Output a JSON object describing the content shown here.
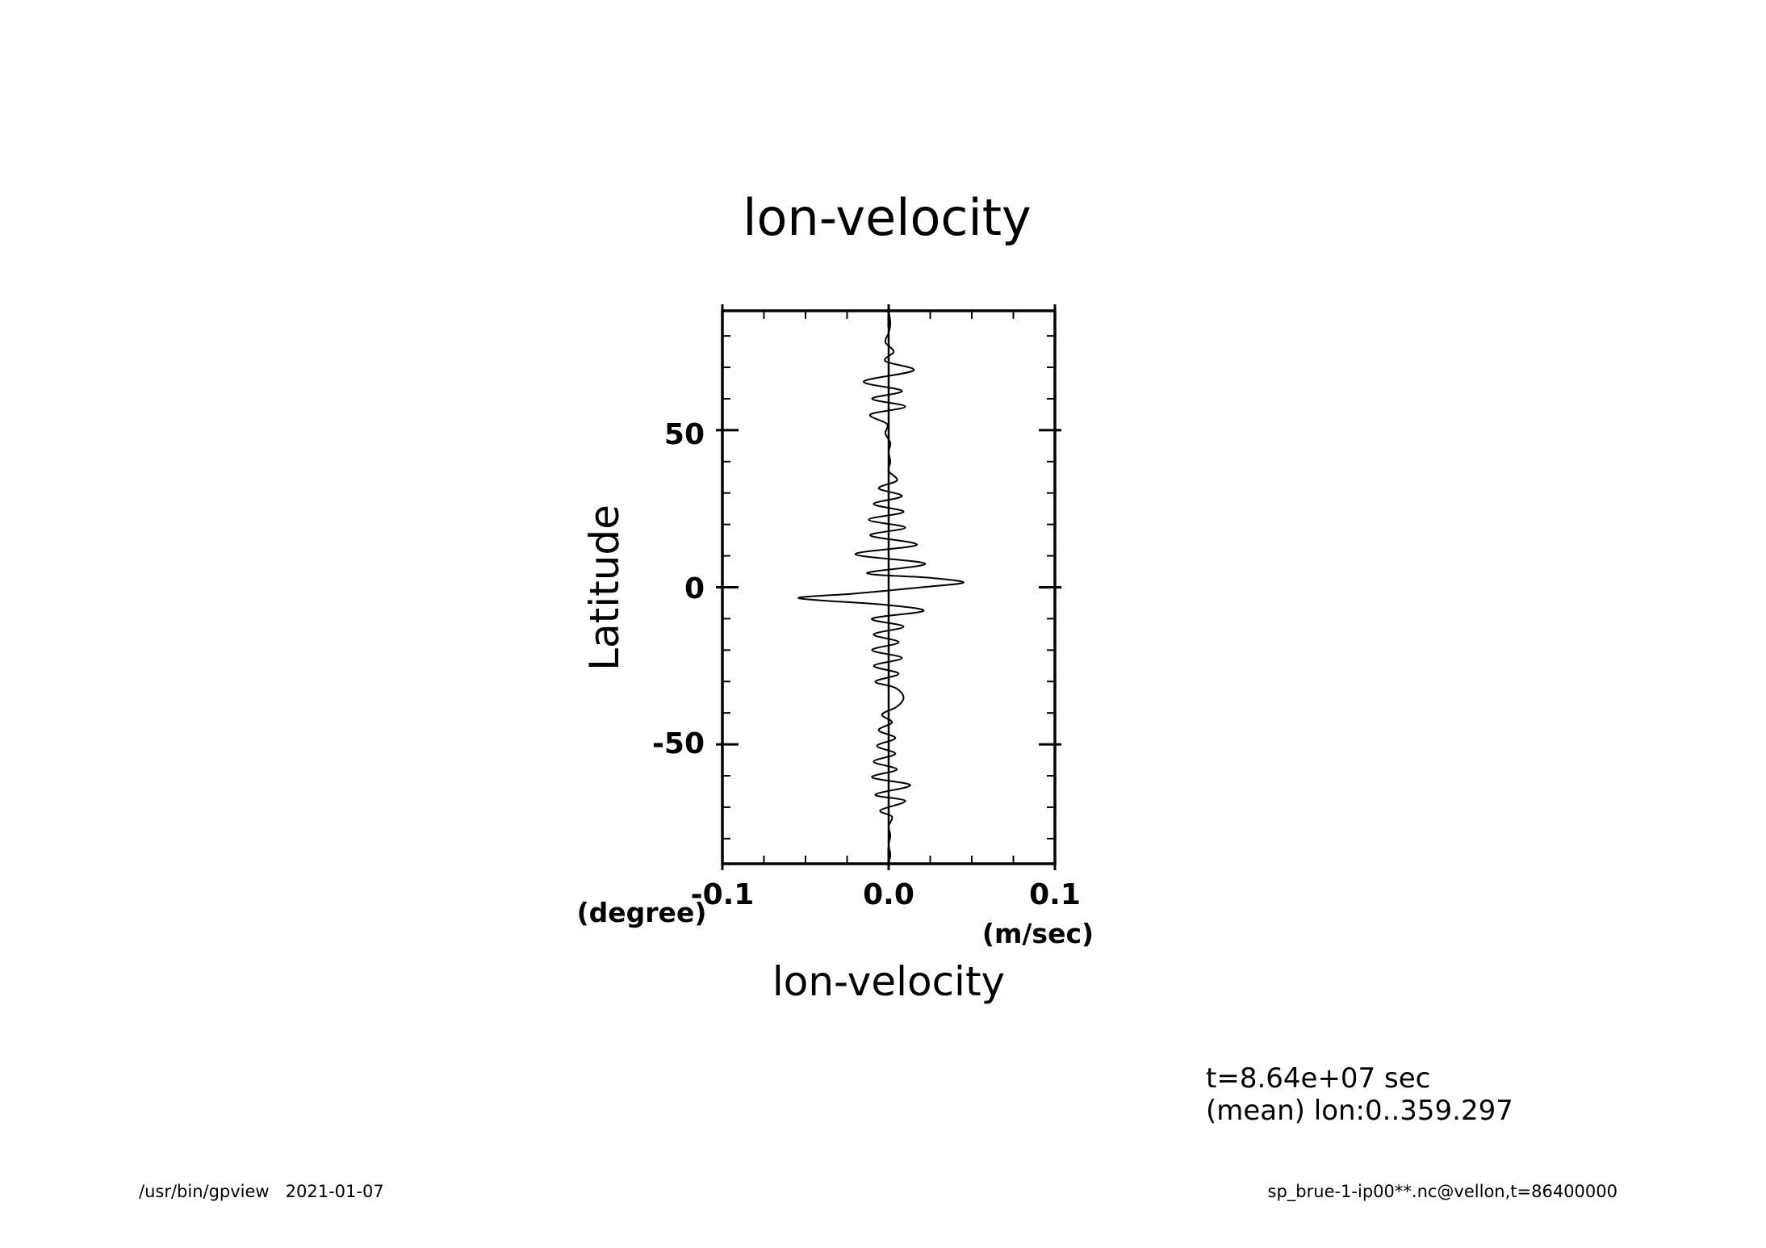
{
  "chart_data": {
    "type": "line",
    "title": "lon-velocity",
    "xlabel": "lon-velocity",
    "ylabel": "Latitude",
    "x_units": "(m/sec)",
    "y_units": "(degree)",
    "xlim": [
      -0.1,
      0.1
    ],
    "ylim": [
      -88,
      88
    ],
    "xticks": [
      -0.1,
      0.0,
      0.1
    ],
    "xtick_labels": [
      "-0.1",
      "0.0",
      "0.1"
    ],
    "yticks": [
      -50,
      0,
      50
    ],
    "ytick_labels": [
      "-50",
      "0",
      "50"
    ],
    "grid": false,
    "series": [
      {
        "points": [
          [
            0.0,
            -88
          ],
          [
            0.001,
            -85
          ],
          [
            0.0,
            -82
          ],
          [
            0.001,
            -79
          ],
          [
            0.0,
            -76
          ],
          [
            0.002,
            -73
          ],
          [
            -0.005,
            -71
          ],
          [
            0.01,
            -68
          ],
          [
            -0.008,
            -66
          ],
          [
            0.013,
            -63
          ],
          [
            -0.01,
            -60.5
          ],
          [
            0.005,
            -58
          ],
          [
            -0.009,
            -55.5
          ],
          [
            0.004,
            -53
          ],
          [
            -0.007,
            -50.5
          ],
          [
            0.004,
            -48
          ],
          [
            -0.006,
            -45.5
          ],
          [
            0.002,
            -43
          ],
          [
            -0.004,
            -40.5
          ],
          [
            0.005,
            -38
          ],
          [
            0.009,
            -35
          ],
          [
            0.004,
            -32
          ],
          [
            -0.008,
            -30
          ],
          [
            0.006,
            -27.5
          ],
          [
            -0.009,
            -25
          ],
          [
            0.008,
            -22.5
          ],
          [
            -0.01,
            -20
          ],
          [
            0.006,
            -17.5
          ],
          [
            -0.009,
            -15
          ],
          [
            0.009,
            -12.5
          ],
          [
            -0.01,
            -10
          ],
          [
            0.021,
            -7.5
          ],
          [
            -0.004,
            -5.5
          ],
          [
            -0.054,
            -3.5
          ],
          [
            -0.02,
            -2
          ],
          [
            0.02,
            0
          ],
          [
            0.045,
            1.5
          ],
          [
            0.025,
            3
          ],
          [
            -0.013,
            4.5
          ],
          [
            0.022,
            7.5
          ],
          [
            -0.02,
            10.5
          ],
          [
            0.017,
            13.5
          ],
          [
            -0.011,
            16.5
          ],
          [
            0.01,
            19
          ],
          [
            -0.012,
            21.5
          ],
          [
            0.009,
            24
          ],
          [
            -0.009,
            26.5
          ],
          [
            0.008,
            29
          ],
          [
            -0.006,
            31.5
          ],
          [
            0.005,
            34
          ],
          [
            0.0,
            37
          ],
          [
            0.001,
            40
          ],
          [
            0.0,
            43
          ],
          [
            0.001,
            46
          ],
          [
            -0.002,
            49
          ],
          [
            -0.001,
            52
          ],
          [
            -0.011,
            55
          ],
          [
            0.01,
            57.5
          ],
          [
            -0.01,
            60
          ],
          [
            0.008,
            62.5
          ],
          [
            -0.015,
            65.5
          ],
          [
            0.015,
            69
          ],
          [
            -0.002,
            72
          ],
          [
            0.003,
            75
          ],
          [
            -0.002,
            78
          ],
          [
            0.0,
            81
          ],
          [
            0.001,
            84
          ],
          [
            0.0,
            88
          ]
        ]
      }
    ]
  },
  "annotations": {
    "time": "t=8.64e+07 sec",
    "mean": "(mean) lon:0..359.297"
  },
  "footer": {
    "left": "/usr/bin/gpview   2021-01-07",
    "right": "sp_brue-1-ip00**.nc@vellon,t=86400000"
  }
}
